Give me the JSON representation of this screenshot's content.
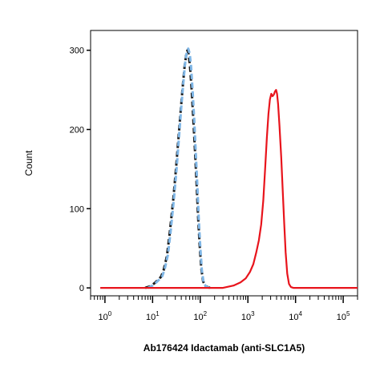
{
  "chart_data": {
    "type": "line",
    "title": "",
    "xlabel": "Ab176424 Idactamab (anti-SLC1A5)",
    "ylabel": "Count",
    "xscale": "log",
    "xlim": [
      0.5,
      200000
    ],
    "ylim": [
      -10,
      325
    ],
    "grid": false,
    "legend": "none",
    "x_ticks": [
      {
        "value": 1,
        "base": "10",
        "exp": "0"
      },
      {
        "value": 10,
        "base": "10",
        "exp": "1"
      },
      {
        "value": 100,
        "base": "10",
        "exp": "2"
      },
      {
        "value": 1000,
        "base": "10",
        "exp": "3"
      },
      {
        "value": 10000,
        "base": "10",
        "exp": "4"
      },
      {
        "value": 100000,
        "base": "10",
        "exp": "5"
      }
    ],
    "y_ticks": [
      {
        "value": 0,
        "label": "0"
      },
      {
        "value": 100,
        "label": "100"
      },
      {
        "value": 200,
        "label": "200"
      },
      {
        "value": 300,
        "label": "300"
      }
    ],
    "series": [
      {
        "color": "#1a1a1a",
        "style": "dashed",
        "points": [
          [
            7,
            0
          ],
          [
            9,
            2
          ],
          [
            11,
            6
          ],
          [
            13,
            10
          ],
          [
            15,
            14
          ],
          [
            17,
            22
          ],
          [
            20,
            40
          ],
          [
            23,
            70
          ],
          [
            27,
            110
          ],
          [
            31,
            150
          ],
          [
            35,
            190
          ],
          [
            39,
            225
          ],
          [
            43,
            255
          ],
          [
            47,
            280
          ],
          [
            51,
            295
          ],
          [
            54,
            300
          ],
          [
            57,
            295
          ],
          [
            61,
            280
          ],
          [
            66,
            250
          ],
          [
            72,
            210
          ],
          [
            78,
            170
          ],
          [
            84,
            130
          ],
          [
            90,
            90
          ],
          [
            97,
            55
          ],
          [
            105,
            25
          ],
          [
            115,
            8
          ],
          [
            130,
            2
          ],
          [
            160,
            0
          ]
        ]
      },
      {
        "color": "#7fb6e6",
        "style": "dashed",
        "points": [
          [
            8,
            0
          ],
          [
            10,
            3
          ],
          [
            12,
            7
          ],
          [
            14,
            11
          ],
          [
            16,
            15
          ],
          [
            18,
            24
          ],
          [
            21,
            42
          ],
          [
            24,
            72
          ],
          [
            28,
            112
          ],
          [
            32,
            152
          ],
          [
            36,
            192
          ],
          [
            40,
            228
          ],
          [
            44,
            258
          ],
          [
            48,
            283
          ],
          [
            52,
            297
          ],
          [
            56,
            302
          ],
          [
            60,
            296
          ],
          [
            64,
            280
          ],
          [
            69,
            250
          ],
          [
            75,
            210
          ],
          [
            81,
            168
          ],
          [
            87,
            128
          ],
          [
            93,
            88
          ],
          [
            100,
            52
          ],
          [
            108,
            22
          ],
          [
            118,
            6
          ],
          [
            135,
            1
          ],
          [
            170,
            0
          ]
        ]
      },
      {
        "color": "#e8141c",
        "style": "solid",
        "points": [
          [
            0.8,
            0
          ],
          [
            300,
            0
          ],
          [
            500,
            3
          ],
          [
            700,
            7
          ],
          [
            900,
            12
          ],
          [
            1100,
            20
          ],
          [
            1300,
            30
          ],
          [
            1500,
            45
          ],
          [
            1700,
            60
          ],
          [
            1900,
            80
          ],
          [
            2100,
            110
          ],
          [
            2300,
            150
          ],
          [
            2500,
            190
          ],
          [
            2700,
            220
          ],
          [
            2900,
            238
          ],
          [
            3100,
            245
          ],
          [
            3300,
            242
          ],
          [
            3500,
            244
          ],
          [
            3700,
            248
          ],
          [
            3900,
            250
          ],
          [
            4100,
            245
          ],
          [
            4300,
            232
          ],
          [
            4600,
            205
          ],
          [
            5000,
            165
          ],
          [
            5400,
            120
          ],
          [
            5800,
            80
          ],
          [
            6200,
            45
          ],
          [
            6700,
            18
          ],
          [
            7300,
            5
          ],
          [
            8000,
            1
          ],
          [
            9000,
            0
          ],
          [
            200000,
            0
          ]
        ]
      }
    ]
  }
}
